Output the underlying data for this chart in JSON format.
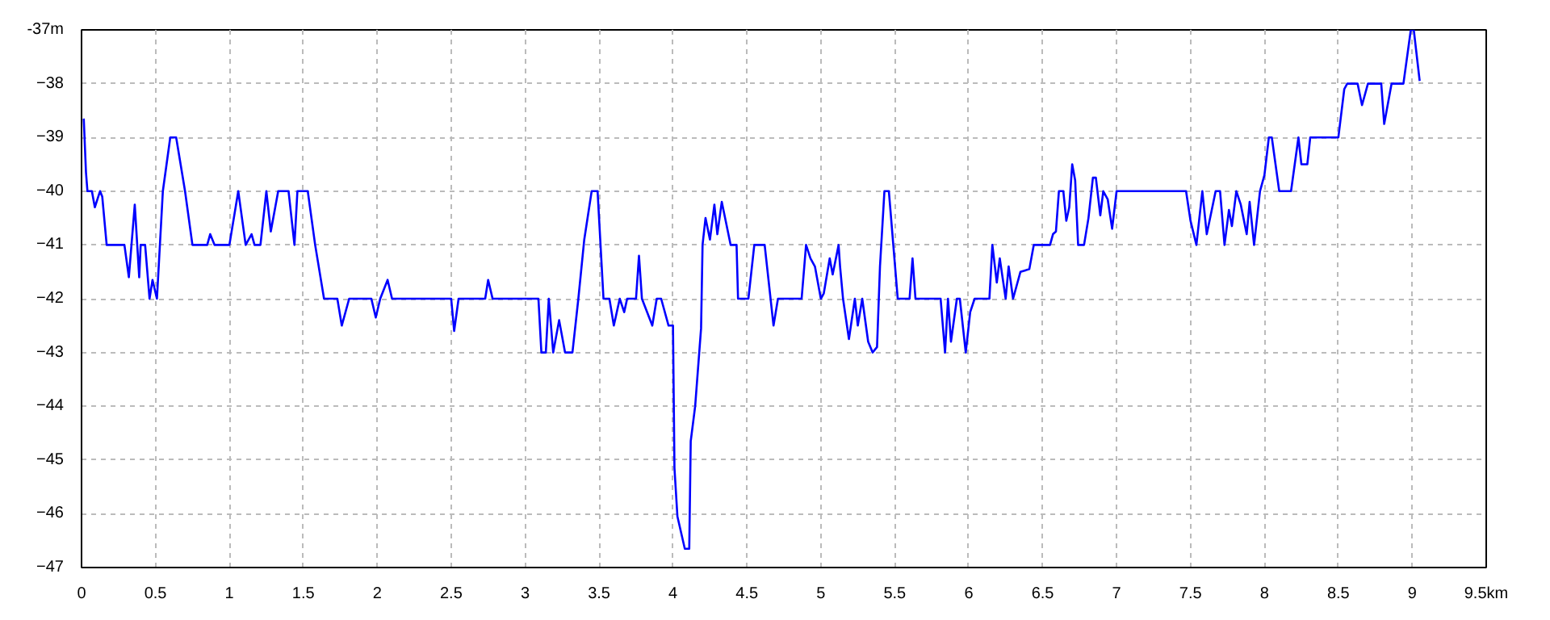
{
  "chart_data": {
    "type": "line",
    "xlim": [
      0,
      9.5
    ],
    "ylim": [
      -47,
      -37
    ],
    "xticks": [
      0,
      0.5,
      1,
      1.5,
      2,
      2.5,
      3,
      3.5,
      4,
      4.5,
      5,
      5.5,
      6,
      6.5,
      7,
      7.5,
      8,
      8.5,
      9,
      {
        "value": 9.5,
        "label": "9.5km"
      }
    ],
    "yticks": [
      -47,
      -46,
      -45,
      -44,
      -43,
      -42,
      -41,
      -40,
      -39,
      -38,
      {
        "value": -37,
        "label": "-37m"
      }
    ],
    "grid": true,
    "line_style": "solid",
    "marker": "none",
    "series": [
      {
        "color": "#0000ff",
        "x": [
          0.015,
          0.03,
          0.04,
          0.07,
          0.09,
          0.125,
          0.14,
          0.17,
          0.29,
          0.32,
          0.36,
          0.39,
          0.4,
          0.43,
          0.46,
          0.48,
          0.51,
          0.55,
          0.6,
          0.64,
          0.7,
          0.75,
          0.85,
          0.87,
          0.9,
          1.0,
          1.06,
          1.11,
          1.15,
          1.17,
          1.21,
          1.25,
          1.28,
          1.33,
          1.4,
          1.44,
          1.46,
          1.53,
          1.58,
          1.64,
          1.73,
          1.76,
          1.81,
          1.96,
          1.99,
          2.02,
          2.07,
          2.1,
          2.5,
          2.52,
          2.55,
          2.73,
          2.75,
          2.78,
          3.09,
          3.11,
          3.14,
          3.16,
          3.19,
          3.23,
          3.27,
          3.32,
          3.36,
          3.4,
          3.45,
          3.49,
          3.53,
          3.57,
          3.6,
          3.64,
          3.67,
          3.69,
          3.75,
          3.77,
          3.79,
          3.86,
          3.89,
          3.92,
          3.97,
          4.0,
          4.01,
          4.03,
          4.08,
          4.11,
          4.12,
          4.15,
          4.19,
          4.2,
          4.22,
          4.25,
          4.28,
          4.3,
          4.33,
          4.36,
          4.39,
          4.43,
          4.44,
          4.51,
          4.55,
          4.62,
          4.68,
          4.71,
          4.87,
          4.9,
          4.93,
          4.96,
          5.0,
          5.02,
          5.06,
          5.08,
          5.12,
          5.13,
          5.15,
          5.19,
          5.23,
          5.25,
          5.28,
          5.32,
          5.35,
          5.38,
          5.4,
          5.43,
          5.46,
          5.49,
          5.52,
          5.6,
          5.62,
          5.64,
          5.81,
          5.84,
          5.86,
          5.88,
          5.92,
          5.94,
          5.98,
          6.01,
          6.04,
          6.14,
          6.16,
          6.19,
          6.21,
          6.25,
          6.27,
          6.3,
          6.35,
          6.41,
          6.44,
          6.55,
          6.57,
          6.59,
          6.61,
          6.64,
          6.66,
          6.68,
          6.7,
          6.72,
          6.74,
          6.78,
          6.81,
          6.84,
          6.86,
          6.89,
          6.91,
          6.94,
          6.97,
          7.0,
          7.47,
          7.5,
          7.54,
          7.58,
          7.61,
          7.67,
          7.7,
          7.73,
          7.76,
          7.78,
          7.81,
          7.84,
          7.88,
          7.9,
          7.93,
          7.97,
          8.0,
          8.03,
          8.05,
          8.1,
          8.18,
          8.23,
          8.25,
          8.29,
          8.31,
          8.5,
          8.54,
          8.56,
          8.63,
          8.66,
          8.7,
          8.79,
          8.81,
          8.86,
          8.94,
          8.99,
          9.01,
          9.05
        ],
        "values": [
          -38.65,
          -39.65,
          -40,
          -40,
          -40.3,
          -40,
          -40.1,
          -41,
          -41,
          -41.6,
          -40.25,
          -41.6,
          -41,
          -41,
          -42,
          -41.65,
          -42,
          -40,
          -39,
          -39,
          -40,
          -41,
          -41,
          -40.8,
          -41,
          -41,
          -40,
          -41,
          -40.8,
          -41,
          -41,
          -40,
          -40.75,
          -40,
          -40,
          -41,
          -40,
          -40,
          -41,
          -42,
          -42,
          -42.5,
          -42,
          -42,
          -42.35,
          -42,
          -41.65,
          -42,
          -42,
          -42.6,
          -42,
          -42,
          -41.65,
          -42,
          -42,
          -43,
          -43,
          -42,
          -43,
          -42.4,
          -43,
          -43,
          -42,
          -40.9,
          -40,
          -40,
          -42,
          -42,
          -42.5,
          -42,
          -42.25,
          -42,
          -42,
          -41.2,
          -42,
          -42.5,
          -42,
          -42,
          -42.5,
          -42.5,
          -45.15,
          -46.05,
          -46.65,
          -46.65,
          -44.65,
          -44,
          -42.55,
          -41,
          -40.5,
          -40.9,
          -40.25,
          -40.8,
          -40.2,
          -40.6,
          -41,
          -41,
          -42,
          -42,
          -41,
          -41,
          -42.5,
          -42,
          -42,
          -41,
          -41.25,
          -41.4,
          -42,
          -41.9,
          -41.25,
          -41.55,
          -41,
          -41.4,
          -42,
          -42.75,
          -42,
          -42.5,
          -42,
          -42.8,
          -43,
          -42.9,
          -41.4,
          -40,
          -40,
          -41,
          -42,
          -42,
          -41.25,
          -42,
          -42,
          -43,
          -42,
          -42.8,
          -42,
          -42,
          -43,
          -42.25,
          -42,
          -42,
          -41,
          -41.7,
          -41.25,
          -42,
          -41.4,
          -42,
          -41.5,
          -41.45,
          -41,
          -41,
          -40.8,
          -40.75,
          -40,
          -40,
          -40.55,
          -40.3,
          -39.5,
          -39.8,
          -41,
          -41,
          -40.5,
          -39.75,
          -39.75,
          -40.45,
          -40,
          -40.15,
          -40.7,
          -40,
          -40,
          -40.55,
          -41,
          -40,
          -40.8,
          -40,
          -40,
          -41,
          -40.35,
          -40.65,
          -40,
          -40.25,
          -40.8,
          -40.2,
          -41,
          -40,
          -39.7,
          -39,
          -39,
          -40,
          -40,
          -39,
          -39.5,
          -39.5,
          -39,
          -39,
          -38.1,
          -38,
          -38,
          -38.4,
          -38,
          -38,
          -38.75,
          -38,
          -38,
          -37,
          -37,
          -37.95
        ]
      }
    ]
  }
}
